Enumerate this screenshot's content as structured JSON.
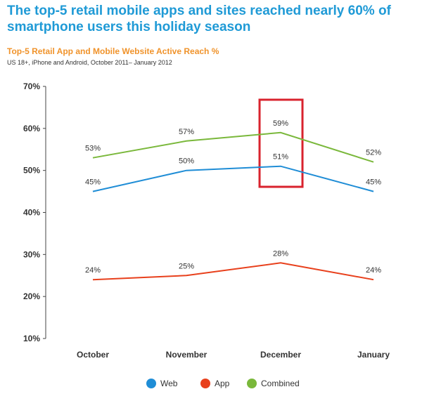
{
  "header": {
    "title": "The top-5 retail mobile apps and sites reached nearly 60% of smartphone users this holiday season",
    "subtitle": "Top-5 Retail App and Mobile Website Active Reach %",
    "note": "US 18+, iPhone and Android, October 2011– January 2012"
  },
  "chart_data": {
    "type": "line",
    "title": "Top-5 Retail App and Mobile Website Active Reach %",
    "categories": [
      "October",
      "November",
      "December",
      "January"
    ],
    "ylim": [
      10,
      70
    ],
    "yticks": [
      "10%",
      "20%",
      "30%",
      "40%",
      "50%",
      "60%",
      "70%"
    ],
    "grid": false,
    "legend_position": "bottom",
    "highlight_category": "December",
    "series": [
      {
        "name": "Web",
        "color": "#1f8dd6",
        "values": [
          45,
          50,
          51,
          45
        ],
        "labels": [
          "45%",
          "50%",
          "51%",
          "45%"
        ]
      },
      {
        "name": "App",
        "color": "#e8401c",
        "values": [
          24,
          25,
          28,
          24
        ],
        "labels": [
          "24%",
          "25%",
          "28%",
          "24%"
        ]
      },
      {
        "name": "Combined",
        "color": "#7ab83b",
        "values": [
          53,
          57,
          59,
          52
        ],
        "labels": [
          "53%",
          "57%",
          "59%",
          "52%"
        ]
      }
    ],
    "highlight_color": "#d9232e"
  }
}
